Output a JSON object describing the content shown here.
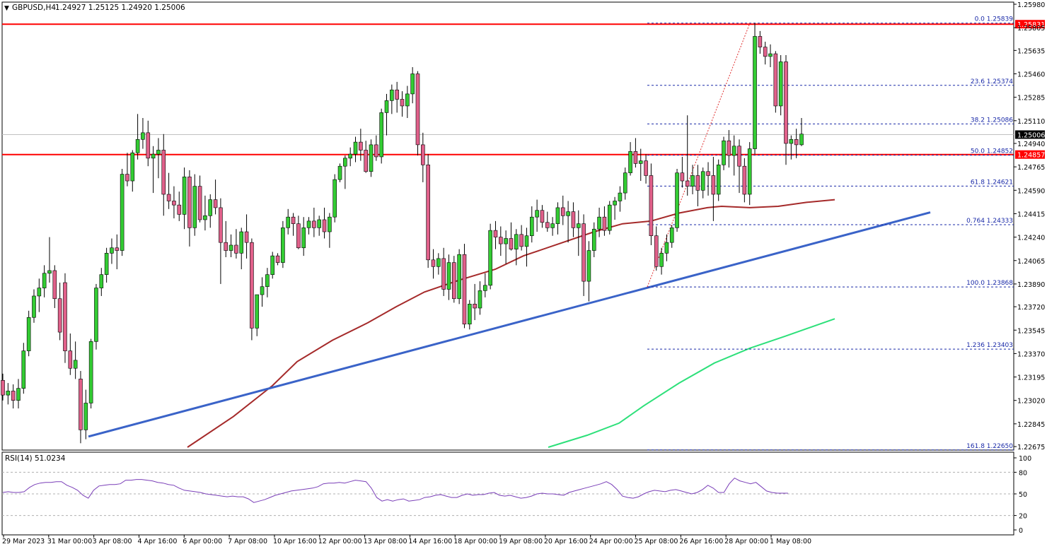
{
  "header": {
    "symbol": "GBPUSD,H4",
    "ohlc": "1.24927 1.25125 1.24920 1.25006"
  },
  "rsi_label": "RSI(14) 51.0234",
  "colors": {
    "bull": "#33cc33",
    "bear": "#e0608a",
    "ma_fast": "#a52a2a",
    "ma_slow": "#2de07a",
    "trendline": "#3a63c8",
    "horizontal": "#ff0000",
    "fib": "#1a2aa8",
    "rsi": "#7a3fb8"
  },
  "chart_data": {
    "type": "candlestick",
    "title": "GBPUSD,H4",
    "ylim": [
      1.2267,
      1.2598
    ],
    "price_ticks": [
      1.2598,
      1.25805,
      1.25635,
      1.2546,
      1.25285,
      1.2511,
      1.2494,
      1.24765,
      1.2459,
      1.24415,
      1.2424,
      1.24065,
      1.2389,
      1.2372,
      1.23545,
      1.2337,
      1.23195,
      1.2302,
      1.22845,
      1.22675
    ],
    "x_labels": [
      "29 Mar 2023",
      "31 Mar 00:00",
      "3 Apr 08:00",
      "4 Apr 16:00",
      "6 Apr 00:00",
      "7 Apr 08:00",
      "10 Apr 16:00",
      "12 Apr 00:00",
      "13 Apr 08:00",
      "14 Apr 16:00",
      "18 Apr 00:00",
      "19 Apr 08:00",
      "20 Apr 16:00",
      "24 Apr 00:00",
      "25 Apr 08:00",
      "26 Apr 16:00",
      "28 Apr 00:00",
      "1 May 08:00"
    ],
    "current_price": 1.25006,
    "horizontal_levels": [
      {
        "label": "1.25831",
        "value": 1.25831
      },
      {
        "label": "1.24857",
        "value": 1.24857
      }
    ],
    "fib_levels": [
      {
        "label": "0.0 1.25839",
        "value": 1.25839
      },
      {
        "label": "23.6 1.25374",
        "value": 1.25374
      },
      {
        "label": "38.2 1.25086",
        "value": 1.25086
      },
      {
        "label": "50.0 1.24852",
        "value": 1.24852
      },
      {
        "label": "61.8 1.24621",
        "value": 1.24621
      },
      {
        "label": "0.764 1.24333",
        "value": 1.24333
      },
      {
        "label": "100.0 1.23868",
        "value": 1.23868
      },
      {
        "label": "1.236 1.23403",
        "value": 1.23403
      },
      {
        "label": "161.8 1.22650",
        "value": 1.2265
      }
    ],
    "candles": [
      [
        1.2317,
        1.2322,
        1.2302,
        1.2306
      ],
      [
        1.2306,
        1.2315,
        1.2299,
        1.2309
      ],
      [
        1.2309,
        1.2314,
        1.2296,
        1.2302
      ],
      [
        1.2302,
        1.2318,
        1.2296,
        1.2311
      ],
      [
        1.2311,
        1.2345,
        1.2307,
        1.2339
      ],
      [
        1.2339,
        1.2369,
        1.2335,
        1.2364
      ],
      [
        1.2364,
        1.2385,
        1.236,
        1.238
      ],
      [
        1.238,
        1.2393,
        1.2368,
        1.2386
      ],
      [
        1.2386,
        1.2403,
        1.2379,
        1.2397
      ],
      [
        1.2397,
        1.2424,
        1.239,
        1.2399
      ],
      [
        1.2399,
        1.2403,
        1.2371,
        1.2378
      ],
      [
        1.2378,
        1.239,
        1.2347,
        1.2353
      ],
      [
        1.239,
        1.2397,
        1.233,
        1.2339
      ],
      [
        1.2339,
        1.2352,
        1.2321,
        1.2326
      ],
      [
        1.2326,
        1.2346,
        1.2318,
        1.2332
      ],
      [
        1.2318,
        1.2324,
        1.227,
        1.228
      ],
      [
        1.228,
        1.231,
        1.2273,
        1.23
      ],
      [
        1.23,
        1.2348,
        1.2296,
        1.2346
      ],
      [
        1.2346,
        1.2389,
        1.234,
        1.2386
      ],
      [
        1.2386,
        1.2401,
        1.238,
        1.2396
      ],
      [
        1.2396,
        1.2416,
        1.239,
        1.2412
      ],
      [
        1.2412,
        1.2423,
        1.2404,
        1.2416
      ],
      [
        1.2416,
        1.2426,
        1.24,
        1.2414
      ],
      [
        1.2414,
        1.2475,
        1.241,
        1.2471
      ],
      [
        1.2471,
        1.2487,
        1.2462,
        1.2466
      ],
      [
        1.2466,
        1.2489,
        1.2458,
        1.2487
      ],
      [
        1.2487,
        1.2516,
        1.2482,
        1.2497
      ],
      [
        1.2497,
        1.2513,
        1.249,
        1.2502
      ],
      [
        1.2502,
        1.2511,
        1.2477,
        1.2483
      ],
      [
        1.2483,
        1.2492,
        1.2457,
        1.2486
      ],
      [
        1.2486,
        1.2498,
        1.2468,
        1.2489
      ],
      [
        1.2489,
        1.2501,
        1.244,
        1.2456
      ],
      [
        1.2456,
        1.2472,
        1.2445,
        1.2451
      ],
      [
        1.2451,
        1.2462,
        1.2438,
        1.2448
      ],
      [
        1.2448,
        1.2458,
        1.2436,
        1.2441
      ],
      [
        1.2441,
        1.2476,
        1.243,
        1.2469
      ],
      [
        1.2469,
        1.2474,
        1.2417,
        1.2431
      ],
      [
        1.2431,
        1.2471,
        1.2425,
        1.2462
      ],
      [
        1.2462,
        1.247,
        1.2435,
        1.2437
      ],
      [
        1.2437,
        1.2455,
        1.2429,
        1.244
      ],
      [
        1.244,
        1.2456,
        1.2431,
        1.2452
      ],
      [
        1.2452,
        1.2467,
        1.2441,
        1.2446
      ],
      [
        1.2446,
        1.2453,
        1.2389,
        1.242
      ],
      [
        1.242,
        1.2436,
        1.2409,
        1.2414
      ],
      [
        1.2414,
        1.2426,
        1.2409,
        1.2418
      ],
      [
        1.2418,
        1.243,
        1.2408,
        1.2412
      ],
      [
        1.2412,
        1.2431,
        1.24,
        1.2428
      ],
      [
        1.2428,
        1.2441,
        1.2408,
        1.242
      ],
      [
        1.242,
        1.2423,
        1.2347,
        1.2356
      ],
      [
        1.2356,
        1.2381,
        1.235,
        1.2381
      ],
      [
        1.2381,
        1.2394,
        1.2372,
        1.2387
      ],
      [
        1.2387,
        1.2401,
        1.2379,
        1.2396
      ],
      [
        1.2396,
        1.2413,
        1.2393,
        1.241
      ],
      [
        1.241,
        1.2412,
        1.2403,
        1.2405
      ],
      [
        1.2405,
        1.2436,
        1.2401,
        1.2431
      ],
      [
        1.2431,
        1.2445,
        1.2426,
        1.2439
      ],
      [
        1.2439,
        1.2442,
        1.2425,
        1.2434
      ],
      [
        1.2434,
        1.244,
        1.2415,
        1.2416
      ],
      [
        1.2416,
        1.2439,
        1.241,
        1.2431
      ],
      [
        1.2431,
        1.2439,
        1.2426,
        1.2436
      ],
      [
        1.2436,
        1.2446,
        1.2424,
        1.2431
      ],
      [
        1.2431,
        1.244,
        1.2425,
        1.2437
      ],
      [
        1.2437,
        1.2446,
        1.2423,
        1.2428
      ],
      [
        1.2428,
        1.2442,
        1.2416,
        1.2439
      ],
      [
        1.2439,
        1.2471,
        1.2435,
        1.2467
      ],
      [
        1.2467,
        1.2479,
        1.2465,
        1.2477
      ],
      [
        1.2477,
        1.2485,
        1.246,
        1.2483
      ],
      [
        1.2483,
        1.2491,
        1.2477,
        1.2486
      ],
      [
        1.2486,
        1.2499,
        1.248,
        1.2495
      ],
      [
        1.2495,
        1.2505,
        1.2481,
        1.2489
      ],
      [
        1.2489,
        1.2496,
        1.2472,
        1.2473
      ],
      [
        1.2473,
        1.2497,
        1.2469,
        1.2493
      ],
      [
        1.2493,
        1.25,
        1.2481,
        1.2484
      ],
      [
        1.2484,
        1.252,
        1.2479,
        1.2517
      ],
      [
        1.2517,
        1.2531,
        1.25,
        1.2526
      ],
      [
        1.2526,
        1.2538,
        1.2516,
        1.2534
      ],
      [
        1.2534,
        1.254,
        1.2517,
        1.2527
      ],
      [
        1.2527,
        1.2533,
        1.2514,
        1.2522
      ],
      [
        1.2522,
        1.2537,
        1.2513,
        1.2531
      ],
      [
        1.2531,
        1.2551,
        1.2524,
        1.2546
      ],
      [
        1.2546,
        1.2548,
        1.2485,
        1.2493
      ],
      [
        1.2493,
        1.2502,
        1.2465,
        1.2478
      ],
      [
        1.2478,
        1.2486,
        1.2401,
        1.2407
      ],
      [
        1.2407,
        1.2415,
        1.2393,
        1.2402
      ],
      [
        1.2402,
        1.2412,
        1.2396,
        1.2408
      ],
      [
        1.2408,
        1.2416,
        1.238,
        1.2385
      ],
      [
        1.2385,
        1.2411,
        1.2377,
        1.2405
      ],
      [
        1.2405,
        1.241,
        1.2375,
        1.2378
      ],
      [
        1.2378,
        1.2415,
        1.2374,
        1.2411
      ],
      [
        1.2411,
        1.2419,
        1.2356,
        1.2359
      ],
      [
        1.2359,
        1.2377,
        1.2355,
        1.2374
      ],
      [
        1.2374,
        1.2389,
        1.2362,
        1.2371
      ],
      [
        1.2371,
        1.2391,
        1.2366,
        1.2384
      ],
      [
        1.2384,
        1.2397,
        1.2379,
        1.2388
      ],
      [
        1.2388,
        1.2434,
        1.2385,
        1.2429
      ],
      [
        1.2429,
        1.2436,
        1.2415,
        1.2424
      ],
      [
        1.2424,
        1.2432,
        1.241,
        1.2419
      ],
      [
        1.2419,
        1.2429,
        1.2404,
        1.2423
      ],
      [
        1.2423,
        1.2435,
        1.2414,
        1.2415
      ],
      [
        1.2415,
        1.243,
        1.2403,
        1.2426
      ],
      [
        1.2426,
        1.2433,
        1.2414,
        1.2417
      ],
      [
        1.2417,
        1.2431,
        1.2402,
        1.2425
      ],
      [
        1.2425,
        1.2447,
        1.242,
        1.2439
      ],
      [
        1.2439,
        1.2452,
        1.2428,
        1.2444
      ],
      [
        1.2444,
        1.2448,
        1.2431,
        1.2435
      ],
      [
        1.2435,
        1.2443,
        1.2428,
        1.2431
      ],
      [
        1.2431,
        1.2439,
        1.2425,
        1.2434
      ],
      [
        1.2434,
        1.245,
        1.2426,
        1.2446
      ],
      [
        1.2446,
        1.2455,
        1.2433,
        1.244
      ],
      [
        1.244,
        1.2451,
        1.242,
        1.2443
      ],
      [
        1.2443,
        1.245,
        1.2424,
        1.2431
      ],
      [
        1.2431,
        1.2444,
        1.241,
        1.2434
      ],
      [
        1.2434,
        1.2441,
        1.238,
        1.2391
      ],
      [
        1.2391,
        1.2421,
        1.2376,
        1.2414
      ],
      [
        1.2414,
        1.2435,
        1.2409,
        1.243
      ],
      [
        1.243,
        1.2446,
        1.2424,
        1.2439
      ],
      [
        1.2439,
        1.2447,
        1.2425,
        1.2429
      ],
      [
        1.2429,
        1.2451,
        1.2426,
        1.2448
      ],
      [
        1.2448,
        1.2454,
        1.2437,
        1.2451
      ],
      [
        1.2451,
        1.2462,
        1.2443,
        1.2457
      ],
      [
        1.2457,
        1.2476,
        1.2452,
        1.2472
      ],
      [
        1.2472,
        1.2495,
        1.247,
        1.2488
      ],
      [
        1.2488,
        1.2498,
        1.2476,
        1.2479
      ],
      [
        1.2479,
        1.249,
        1.2466,
        1.2481
      ],
      [
        1.2481,
        1.2486,
        1.2464,
        1.247
      ],
      [
        1.247,
        1.2479,
        1.2418,
        1.2425
      ],
      [
        1.2425,
        1.2432,
        1.2399,
        1.2402
      ],
      [
        1.2402,
        1.2416,
        1.2396,
        1.2412
      ],
      [
        1.2412,
        1.2426,
        1.2406,
        1.242
      ],
      [
        1.242,
        1.2433,
        1.2416,
        1.2431
      ],
      [
        1.2431,
        1.2475,
        1.2428,
        1.2472
      ],
      [
        1.2472,
        1.2484,
        1.2461,
        1.2466
      ],
      [
        1.2466,
        1.2515,
        1.2455,
        1.2462
      ],
      [
        1.2462,
        1.2478,
        1.2456,
        1.247
      ],
      [
        1.247,
        1.2478,
        1.2447,
        1.2459
      ],
      [
        1.2459,
        1.2476,
        1.2453,
        1.2473
      ],
      [
        1.2473,
        1.248,
        1.2455,
        1.247
      ],
      [
        1.247,
        1.2484,
        1.2436,
        1.2456
      ],
      [
        1.2456,
        1.2482,
        1.2451,
        1.2478
      ],
      [
        1.2478,
        1.2499,
        1.2474,
        1.2496
      ],
      [
        1.2496,
        1.2504,
        1.2476,
        1.2485
      ],
      [
        1.2485,
        1.25,
        1.247,
        1.2492
      ],
      [
        1.2492,
        1.2497,
        1.2457,
        1.2477
      ],
      [
        1.2477,
        1.2483,
        1.245,
        1.2456
      ],
      [
        1.2456,
        1.2495,
        1.2448,
        1.249
      ],
      [
        1.249,
        1.2584,
        1.2486,
        1.2574
      ],
      [
        1.2574,
        1.2578,
        1.2561,
        1.2566
      ],
      [
        1.2566,
        1.257,
        1.2553,
        1.2559
      ],
      [
        1.2559,
        1.2568,
        1.2551,
        1.2561
      ],
      [
        1.2561,
        1.2563,
        1.2517,
        1.2522
      ],
      [
        1.2522,
        1.256,
        1.2515,
        1.2555
      ],
      [
        1.2555,
        1.256,
        1.2478,
        1.2494
      ],
      [
        1.2494,
        1.25,
        1.2482,
        1.2497
      ],
      [
        1.2497,
        1.2505,
        1.2483,
        1.2493
      ],
      [
        1.2493,
        1.2513,
        1.2492,
        1.2501
      ]
    ],
    "ma_fast": [
      [
        265,
        1.2267
      ],
      [
        330,
        1.229
      ],
      [
        385,
        1.2313
      ],
      [
        420,
        1.2331
      ],
      [
        470,
        1.2347
      ],
      [
        520,
        1.236
      ],
      [
        560,
        1.2372
      ],
      [
        600,
        1.2383
      ],
      [
        650,
        1.2392
      ],
      [
        700,
        1.24
      ],
      [
        740,
        1.241
      ],
      [
        790,
        1.2419
      ],
      [
        840,
        1.2428
      ],
      [
        880,
        1.2434
      ],
      [
        920,
        1.2436
      ],
      [
        960,
        1.2442
      ],
      [
        1000,
        1.2446
      ],
      [
        1020,
        1.2447
      ],
      [
        1060,
        1.2446
      ],
      [
        1100,
        1.2447
      ],
      [
        1140,
        1.245
      ],
      [
        1180,
        1.2452
      ]
    ],
    "ma_slow": [
      [
        775,
        1.2267
      ],
      [
        830,
        1.2276
      ],
      [
        875,
        1.2285
      ],
      [
        910,
        1.2298
      ],
      [
        960,
        1.2315
      ],
      [
        1010,
        1.233
      ],
      [
        1060,
        1.2341
      ],
      [
        1110,
        1.235
      ],
      [
        1180,
        1.2363
      ]
    ],
    "trendline": [
      [
        125,
        1.2275
      ],
      [
        1315,
        1.24425
      ]
    ],
    "fib_guide": [
      [
        915,
        1.23868
      ],
      [
        1060,
        1.25839
      ]
    ],
    "rsi_ticks": [
      100,
      80,
      50,
      20,
      0
    ],
    "rsi_values": [
      52,
      53,
      52,
      52,
      53,
      59,
      63,
      65,
      66,
      66,
      67,
      67,
      62,
      59,
      55,
      48,
      44,
      55,
      61,
      62,
      63,
      63,
      64,
      69,
      69,
      70,
      70,
      69,
      68,
      66,
      65,
      63,
      62,
      58,
      55,
      54,
      53,
      52,
      50,
      49,
      48,
      47,
      46,
      47,
      46,
      46,
      43,
      38,
      40,
      42,
      45,
      48,
      50,
      52,
      54,
      55,
      56,
      57,
      58,
      60,
      64,
      65,
      65,
      66,
      65,
      67,
      69,
      68,
      67,
      58,
      45,
      40,
      42,
      40,
      42,
      43,
      40,
      41,
      42,
      45,
      46,
      48,
      49,
      47,
      45,
      45,
      48,
      50,
      48,
      49,
      49,
      51,
      52,
      48,
      47,
      48,
      46,
      44,
      45,
      47,
      50,
      51,
      50,
      50,
      49,
      48,
      52,
      54,
      56,
      58,
      60,
      62,
      64,
      67,
      63,
      56,
      47,
      45,
      44,
      46,
      50,
      53,
      55,
      54,
      53,
      55,
      56,
      54,
      52,
      50,
      52,
      56,
      62,
      58,
      52,
      52,
      64,
      72,
      68,
      66,
      64,
      66,
      60,
      54,
      52,
      51,
      51,
      51
    ],
    "rsi_start_x": 4,
    "rsi_step_x": 7.55
  }
}
